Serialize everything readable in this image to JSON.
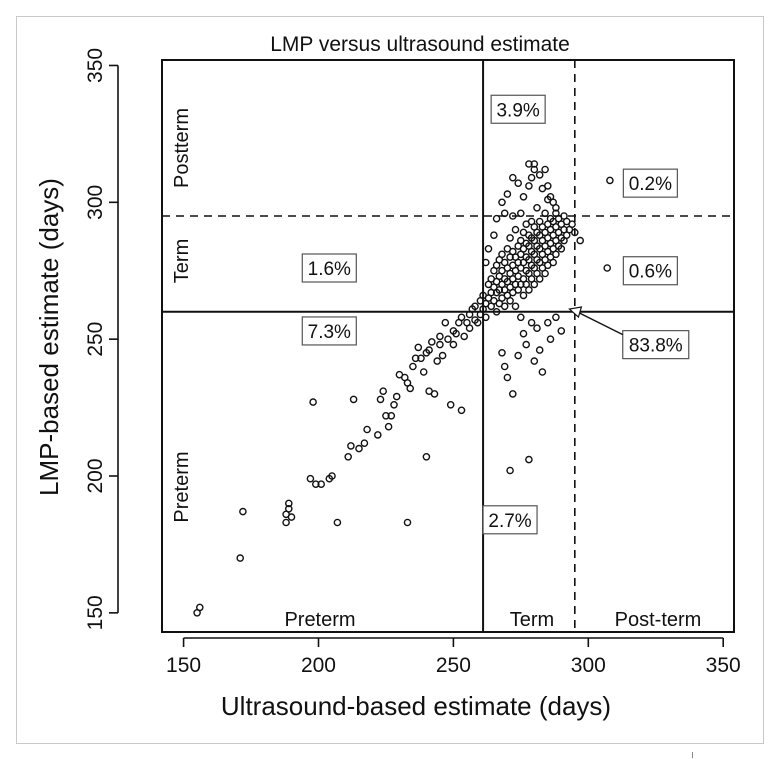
{
  "chart_data": {
    "type": "scatter",
    "title": "LMP versus ultrasound estimate",
    "xlabel": "Ultrasound-based estimate (days)",
    "ylabel": "LMP-based estimate (days)",
    "xlim": [
      142,
      354
    ],
    "ylim": [
      143,
      352
    ],
    "x_ticks": [
      150,
      200,
      250,
      300,
      350
    ],
    "y_ticks": [
      150,
      200,
      250,
      300,
      350
    ],
    "grid": false,
    "legend": "none",
    "thresholds": {
      "x_term_start": 261,
      "x_postterm_start": 295,
      "y_term_start": 260,
      "y_postterm_start": 295
    },
    "region_labels": {
      "x": [
        "Preterm",
        "Term",
        "Post-term"
      ],
      "y": [
        "Preterm",
        "Term",
        "Postterm"
      ]
    },
    "percent_labels": [
      {
        "text": "3.9%",
        "x": 274,
        "y": 334
      },
      {
        "text": "0.2%",
        "x": 323,
        "y": 307
      },
      {
        "text": "1.6%",
        "x": 204,
        "y": 276
      },
      {
        "text": "0.6%",
        "x": 323,
        "y": 275
      },
      {
        "text": "7.3%",
        "x": 204,
        "y": 253
      },
      {
        "text": "83.8%",
        "x": 325,
        "y": 248
      },
      {
        "text": "2.7%",
        "x": 271,
        "y": 184
      }
    ],
    "arrow_to": {
      "x": 293,
      "y": 261
    },
    "points": [
      [
        155,
        150
      ],
      [
        156,
        152
      ],
      [
        171,
        170
      ],
      [
        172,
        187
      ],
      [
        188,
        183
      ],
      [
        188,
        186
      ],
      [
        189,
        188
      ],
      [
        189,
        190
      ],
      [
        190,
        185
      ],
      [
        197,
        199
      ],
      [
        198,
        227
      ],
      [
        199,
        197
      ],
      [
        201,
        197
      ],
      [
        204,
        199
      ],
      [
        205,
        200
      ],
      [
        207,
        183
      ],
      [
        211,
        207
      ],
      [
        212,
        211
      ],
      [
        213,
        228
      ],
      [
        215,
        210
      ],
      [
        217,
        212
      ],
      [
        218,
        217
      ],
      [
        222,
        215
      ],
      [
        223,
        228
      ],
      [
        224,
        231
      ],
      [
        225,
        222
      ],
      [
        226,
        218
      ],
      [
        227,
        222
      ],
      [
        228,
        226
      ],
      [
        229,
        229
      ],
      [
        230,
        237
      ],
      [
        232,
        236
      ],
      [
        233,
        183
      ],
      [
        233,
        234
      ],
      [
        234,
        232
      ],
      [
        235,
        240
      ],
      [
        236,
        243
      ],
      [
        237,
        247
      ],
      [
        238,
        243
      ],
      [
        239,
        238
      ],
      [
        240,
        245
      ],
      [
        240,
        207
      ],
      [
        241,
        246
      ],
      [
        241,
        231
      ],
      [
        242,
        249
      ],
      [
        243,
        230
      ],
      [
        244,
        242
      ],
      [
        245,
        251
      ],
      [
        245,
        248
      ],
      [
        246,
        244
      ],
      [
        247,
        256
      ],
      [
        248,
        250
      ],
      [
        249,
        226
      ],
      [
        250,
        253
      ],
      [
        250,
        248
      ],
      [
        251,
        252
      ],
      [
        252,
        256
      ],
      [
        253,
        224
      ],
      [
        253,
        258
      ],
      [
        254,
        251
      ],
      [
        255,
        256
      ],
      [
        256,
        259
      ],
      [
        256,
        254
      ],
      [
        257,
        261
      ],
      [
        258,
        257
      ],
      [
        258,
        262
      ],
      [
        259,
        256
      ],
      [
        260,
        264
      ],
      [
        260,
        259
      ],
      [
        261,
        261
      ],
      [
        261,
        266
      ],
      [
        262,
        263
      ],
      [
        262,
        258
      ],
      [
        263,
        265
      ],
      [
        263,
        270
      ],
      [
        264,
        262
      ],
      [
        264,
        267
      ],
      [
        264,
        272
      ],
      [
        265,
        264
      ],
      [
        265,
        269
      ],
      [
        265,
        275
      ],
      [
        266,
        260
      ],
      [
        266,
        267
      ],
      [
        266,
        271
      ],
      [
        266,
        277
      ],
      [
        267,
        263
      ],
      [
        267,
        268
      ],
      [
        267,
        273
      ],
      [
        267,
        279
      ],
      [
        268,
        265
      ],
      [
        268,
        270
      ],
      [
        268,
        275
      ],
      [
        268,
        281
      ],
      [
        269,
        262
      ],
      [
        269,
        268
      ],
      [
        269,
        272
      ],
      [
        269,
        278
      ],
      [
        270,
        266
      ],
      [
        270,
        271
      ],
      [
        270,
        276
      ],
      [
        270,
        283
      ],
      [
        270,
        303
      ],
      [
        271,
        264
      ],
      [
        271,
        269
      ],
      [
        271,
        274
      ],
      [
        271,
        280
      ],
      [
        271,
        287
      ],
      [
        272,
        267
      ],
      [
        272,
        272
      ],
      [
        272,
        277
      ],
      [
        272,
        282
      ],
      [
        272,
        295
      ],
      [
        273,
        262
      ],
      [
        273,
        270
      ],
      [
        273,
        275
      ],
      [
        273,
        280
      ],
      [
        273,
        290
      ],
      [
        274,
        268
      ],
      [
        274,
        273
      ],
      [
        274,
        278
      ],
      [
        274,
        284
      ],
      [
        274,
        244
      ],
      [
        275,
        270
      ],
      [
        275,
        276
      ],
      [
        275,
        281
      ],
      [
        275,
        286
      ],
      [
        275,
        296
      ],
      [
        276,
        266
      ],
      [
        276,
        272
      ],
      [
        276,
        278
      ],
      [
        276,
        283
      ],
      [
        276,
        289
      ],
      [
        277,
        270
      ],
      [
        277,
        275
      ],
      [
        277,
        280
      ],
      [
        277,
        285
      ],
      [
        277,
        292
      ],
      [
        278,
        268
      ],
      [
        278,
        274
      ],
      [
        278,
        279
      ],
      [
        278,
        284
      ],
      [
        278,
        288
      ],
      [
        278,
        306
      ],
      [
        279,
        272
      ],
      [
        279,
        277
      ],
      [
        279,
        282
      ],
      [
        279,
        287
      ],
      [
        279,
        293
      ],
      [
        280,
        270
      ],
      [
        280,
        276
      ],
      [
        280,
        281
      ],
      [
        280,
        286
      ],
      [
        280,
        291
      ],
      [
        280,
        312
      ],
      [
        281,
        274
      ],
      [
        281,
        279
      ],
      [
        281,
        284
      ],
      [
        281,
        289
      ],
      [
        281,
        298
      ],
      [
        282,
        272
      ],
      [
        282,
        278
      ],
      [
        282,
        283
      ],
      [
        282,
        288
      ],
      [
        282,
        293
      ],
      [
        283,
        276
      ],
      [
        283,
        281
      ],
      [
        283,
        286
      ],
      [
        283,
        291
      ],
      [
        283,
        305
      ],
      [
        284,
        274
      ],
      [
        284,
        279
      ],
      [
        284,
        284
      ],
      [
        284,
        289
      ],
      [
        284,
        296
      ],
      [
        285,
        277
      ],
      [
        285,
        282
      ],
      [
        285,
        287
      ],
      [
        285,
        292
      ],
      [
        285,
        301
      ],
      [
        286,
        280
      ],
      [
        286,
        285
      ],
      [
        286,
        290
      ],
      [
        286,
        294
      ],
      [
        287,
        278
      ],
      [
        287,
        283
      ],
      [
        287,
        288
      ],
      [
        287,
        293
      ],
      [
        288,
        281
      ],
      [
        288,
        286
      ],
      [
        288,
        291
      ],
      [
        288,
        296
      ],
      [
        289,
        284
      ],
      [
        289,
        289
      ],
      [
        289,
        294
      ],
      [
        290,
        283
      ],
      [
        290,
        287
      ],
      [
        290,
        292
      ],
      [
        291,
        286
      ],
      [
        291,
        290
      ],
      [
        291,
        295
      ],
      [
        292,
        288
      ],
      [
        292,
        293
      ],
      [
        293,
        290
      ],
      [
        294,
        292
      ],
      [
        295,
        289
      ],
      [
        297,
        286
      ],
      [
        268,
        245
      ],
      [
        269,
        240
      ],
      [
        270,
        236
      ],
      [
        271,
        202
      ],
      [
        272,
        230
      ],
      [
        275,
        258
      ],
      [
        276,
        252
      ],
      [
        277,
        248
      ],
      [
        278,
        206
      ],
      [
        279,
        256
      ],
      [
        280,
        242
      ],
      [
        281,
        254
      ],
      [
        282,
        246
      ],
      [
        283,
        238
      ],
      [
        285,
        256
      ],
      [
        286,
        250
      ],
      [
        288,
        258
      ],
      [
        290,
        253
      ],
      [
        262,
        278
      ],
      [
        263,
        283
      ],
      [
        265,
        288
      ],
      [
        266,
        294
      ],
      [
        268,
        300
      ],
      [
        269,
        296
      ],
      [
        272,
        309
      ],
      [
        274,
        307
      ],
      [
        276,
        302
      ],
      [
        278,
        314
      ],
      [
        279,
        309
      ],
      [
        280,
        314
      ],
      [
        282,
        310
      ],
      [
        284,
        312
      ],
      [
        285,
        306
      ],
      [
        286,
        302
      ],
      [
        287,
        300
      ],
      [
        288,
        298
      ],
      [
        308,
        308
      ],
      [
        307,
        276
      ]
    ]
  }
}
